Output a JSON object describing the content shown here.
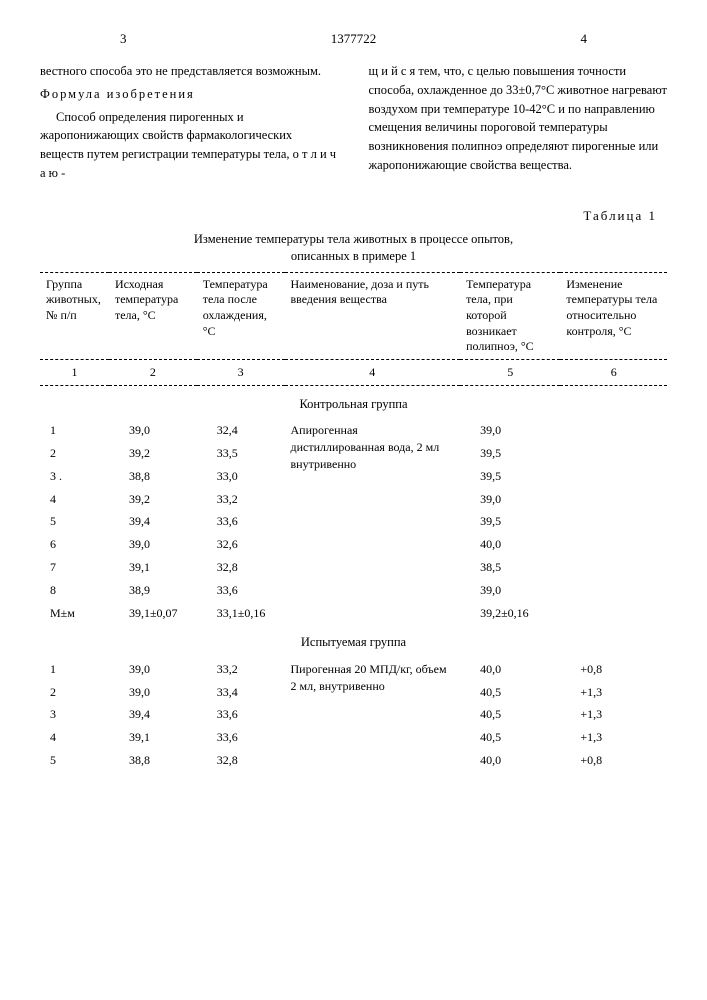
{
  "header": {
    "page_left": "3",
    "doc_number": "1377722",
    "page_right": "4"
  },
  "left_col": {
    "p1": "вестного способа это не представляется возможным.",
    "formula_label": "Формула изобретения",
    "p2": "Способ определения пирогенных и жаропонижающих свойств фармакологических веществ путем регистрации температуры тела, о т л и ч а ю -"
  },
  "right_col": {
    "p1": "щ и й с я  тем, что, с целью повышения точности способа, охлажденное до 33±0,7°С животное нагревают воздухом при температуре 10-42°С и по направлению смещения величины пороговой температуры возникновения полипноэ определяют пирогенные или жаропонижающие свойства вещества."
  },
  "table": {
    "label": "Таблица 1",
    "caption_l1": "Изменение температуры тела животных в процессе опытов,",
    "caption_l2": "описанных в примере 1",
    "headers": {
      "h1": "Группа животных, № п/п",
      "h2": "Исходная температура тела, °С",
      "h3": "Температура тела после охлаждения, °С",
      "h4": "Наименование, доза и путь введения вещества",
      "h5": "Температура тела, при которой возникает полипноэ, °С",
      "h6": "Изменение температуры тела относительно контроля, °С"
    },
    "colnums": {
      "n1": "1",
      "n2": "2",
      "n3": "3",
      "n4": "4",
      "n5": "5",
      "n6": "6"
    },
    "sections": [
      {
        "title": "Контрольная группа",
        "substance": "Апирогенная дистиллированная вода, 2 мл внутривенно",
        "rows": [
          {
            "c1": "1",
            "c2": "39,0",
            "c3": "32,4",
            "c5": "39,0",
            "c6": ""
          },
          {
            "c1": "2",
            "c2": "39,2",
            "c3": "33,5",
            "c5": "39,5",
            "c6": ""
          },
          {
            "c1": "3 .",
            "c2": "38,8",
            "c3": "33,0",
            "c5": "39,5",
            "c6": ""
          },
          {
            "c1": "4",
            "c2": "39,2",
            "c3": "33,2",
            "c5": "39,0",
            "c6": ""
          },
          {
            "c1": "5",
            "c2": "39,4",
            "c3": "33,6",
            "c5": "39,5",
            "c6": ""
          },
          {
            "c1": "6",
            "c2": "39,0",
            "c3": "32,6",
            "c5": "40,0",
            "c6": ""
          },
          {
            "c1": "7",
            "c2": "39,1",
            "c3": "32,8",
            "c5": "38,5",
            "c6": ""
          },
          {
            "c1": "8",
            "c2": "38,9",
            "c3": "33,6",
            "c5": "39,0",
            "c6": ""
          },
          {
            "c1": "M±м",
            "c2": "39,1±0,07",
            "c3": "33,1±0,16",
            "c5": "39,2±0,16",
            "c6": ""
          }
        ]
      },
      {
        "title": "Испытуемая группа",
        "substance": "Пирогенная 20 МПД/кг, объем 2 мл, внутривенно",
        "rows": [
          {
            "c1": "1",
            "c2": "39,0",
            "c3": "33,2",
            "c5": "40,0",
            "c6": "+0,8"
          },
          {
            "c1": "2",
            "c2": "39,0",
            "c3": "33,4",
            "c5": "40,5",
            "c6": "+1,3"
          },
          {
            "c1": "3",
            "c2": "39,4",
            "c3": "33,6",
            "c5": "40,5",
            "c6": "+1,3"
          },
          {
            "c1": "4",
            "c2": "39,1",
            "c3": "33,6",
            "c5": "40,5",
            "c6": "+1,3"
          },
          {
            "c1": "5",
            "c2": "38,8",
            "c3": "32,8",
            "c5": "40,0",
            "c6": "+0,8"
          }
        ]
      }
    ]
  }
}
